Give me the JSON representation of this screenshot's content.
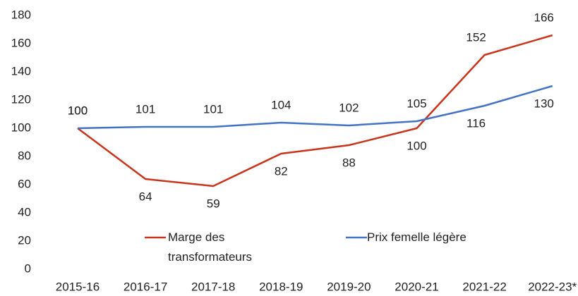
{
  "chart_data": {
    "type": "line",
    "categories": [
      "2015-16",
      "2016-17",
      "2017-18",
      "2018-19",
      "2019-20",
      "2020-21",
      "2021-22",
      "2022-23*"
    ],
    "series": [
      {
        "name": "Marge des transformateurs",
        "color": "#c9341c",
        "values": [
          100,
          64,
          59,
          82,
          88,
          100,
          152,
          166
        ]
      },
      {
        "name": "Prix femelle légère",
        "color": "#4472c4",
        "values": [
          100,
          101,
          101,
          104,
          102,
          105,
          116,
          130
        ]
      }
    ],
    "ylim": [
      0,
      180
    ],
    "yticks": [
      0,
      20,
      40,
      60,
      80,
      100,
      120,
      140,
      160,
      180
    ],
    "grid": false
  }
}
